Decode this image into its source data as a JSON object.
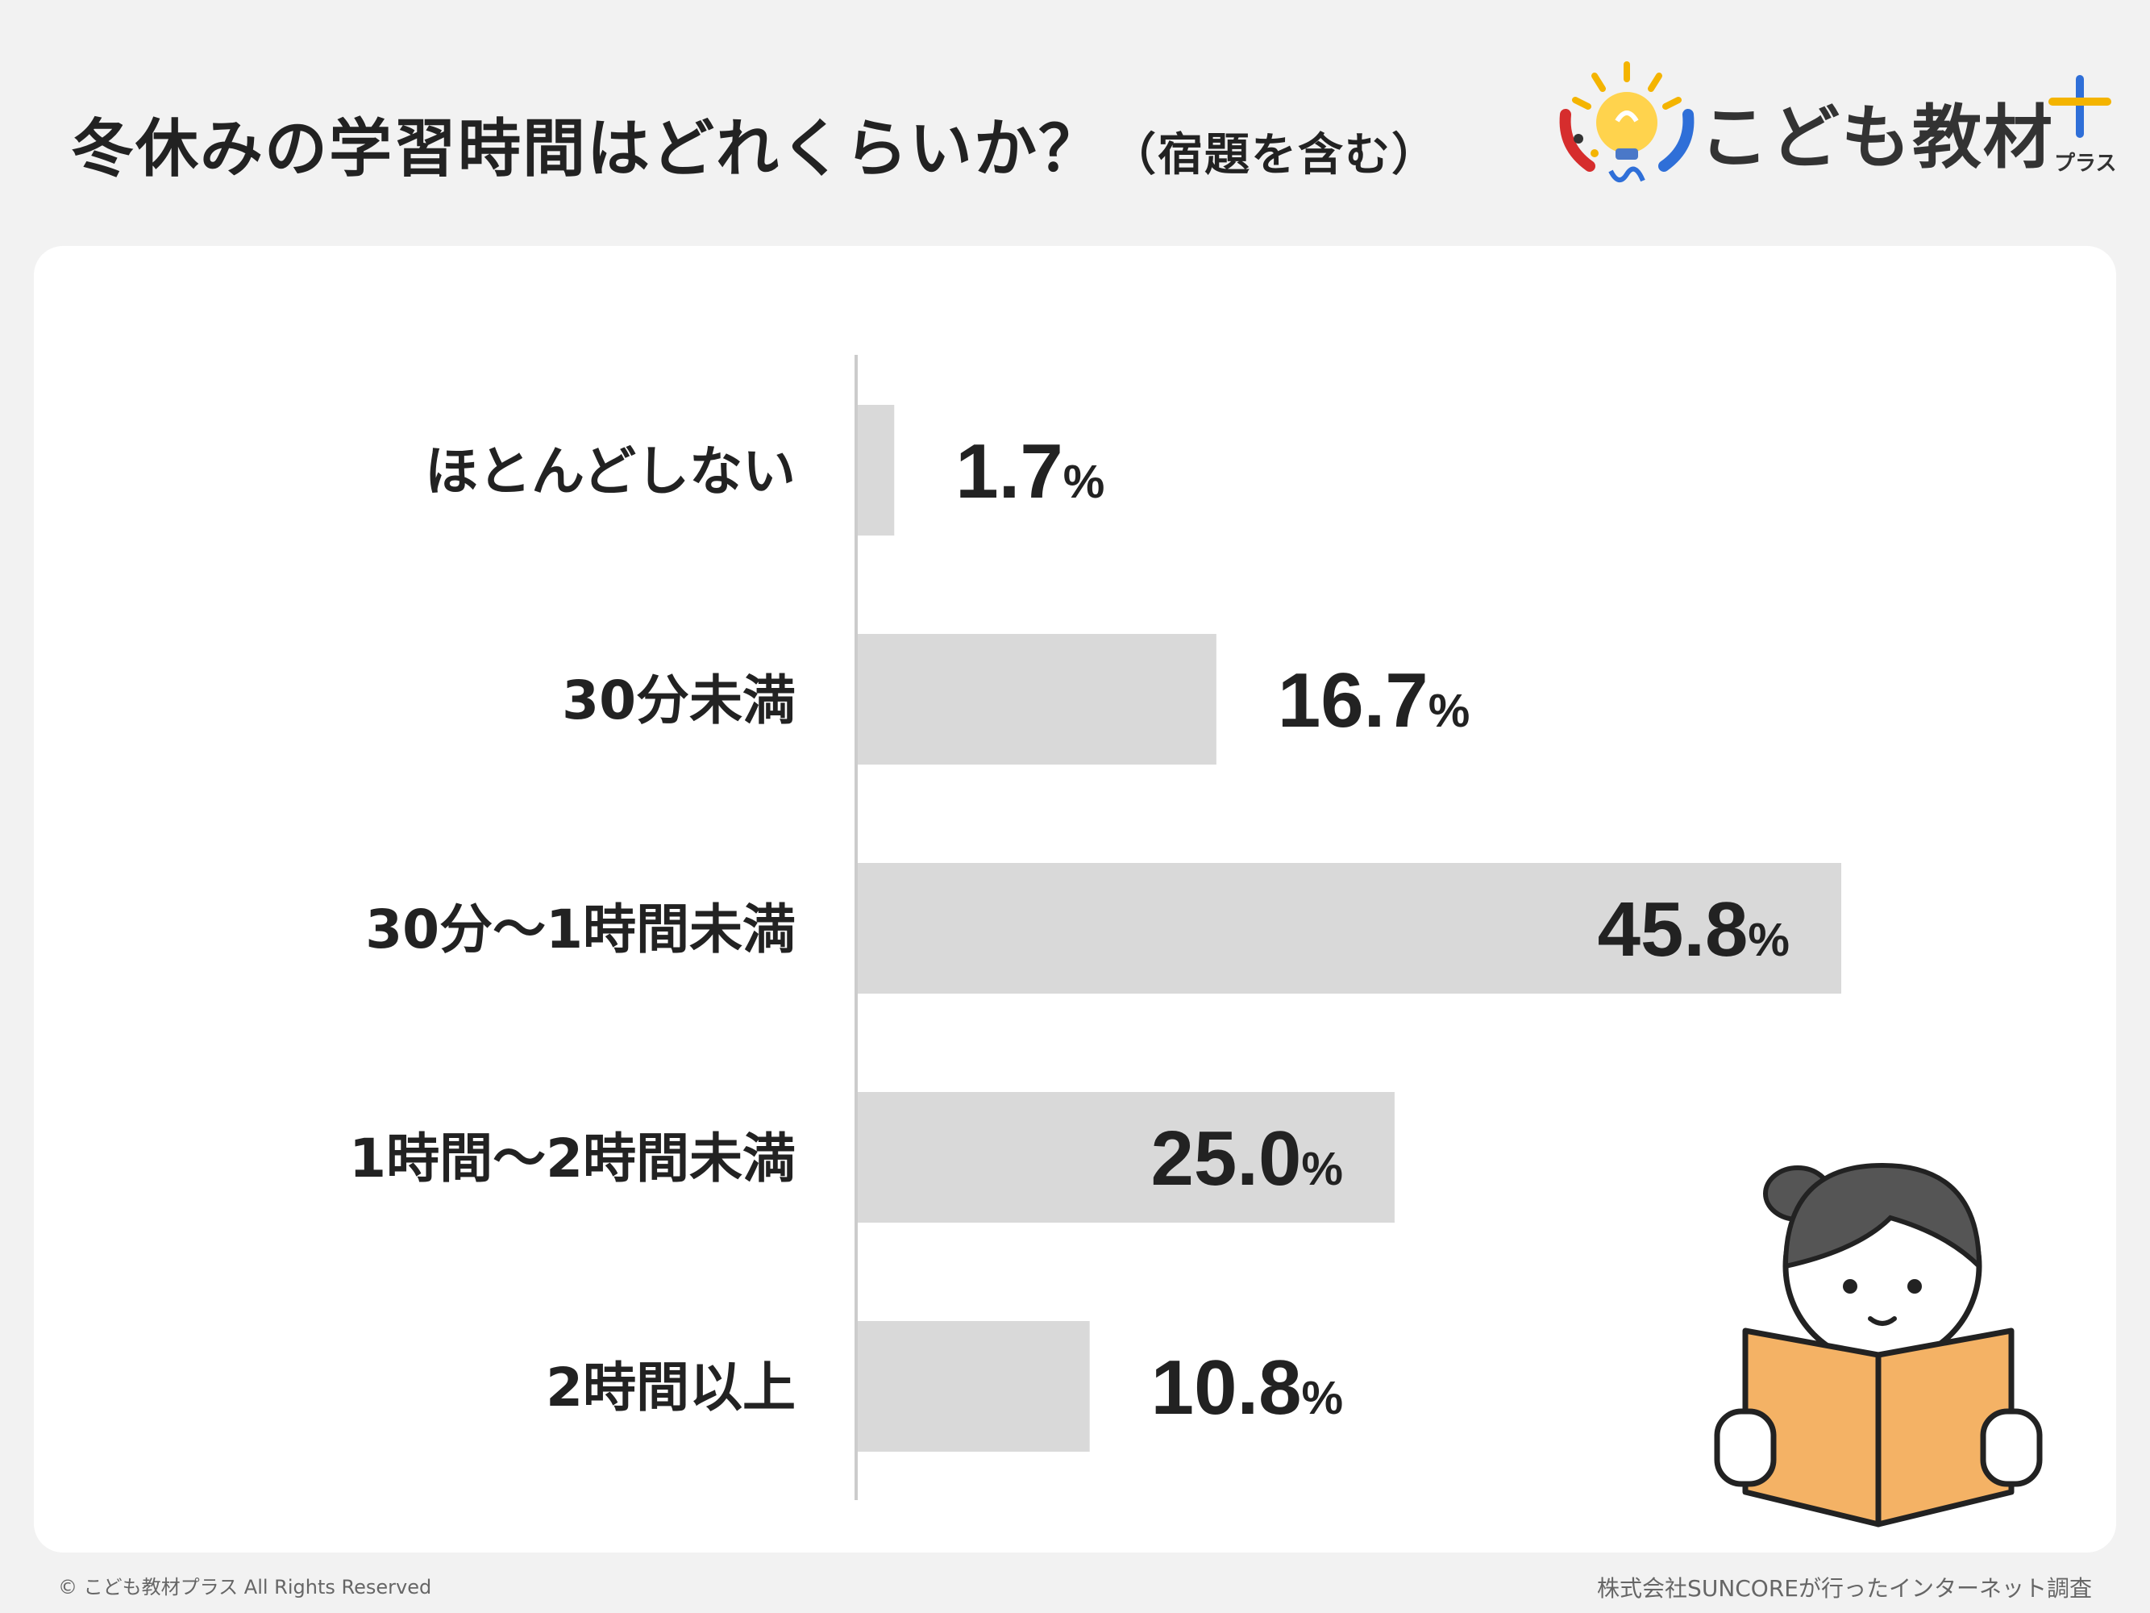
{
  "title": {
    "main": "冬休みの学習時間はどれくらいか？",
    "sub": "（宿題を含む）"
  },
  "logo": {
    "text": "こども教材",
    "plus_label": "プラス"
  },
  "chart_data": {
    "type": "bar",
    "orientation": "horizontal",
    "categories": [
      "ほとんどしない",
      "30分未満",
      "30分〜1時間未満",
      "1時間〜2時間未満",
      "2時間以上"
    ],
    "values": [
      1.7,
      16.7,
      45.8,
      25.0,
      10.8
    ],
    "value_labels": [
      "1.7",
      "16.7",
      "45.8",
      "25.0",
      "10.8"
    ],
    "unit": "%",
    "bar_color": "#d9d9d9",
    "xlim": [
      0,
      50
    ],
    "grid": false
  },
  "footer": {
    "copyright": "© こども教材プラス All Rights Reserved",
    "source": "株式会社SUNCOREが行ったインターネット調査"
  }
}
